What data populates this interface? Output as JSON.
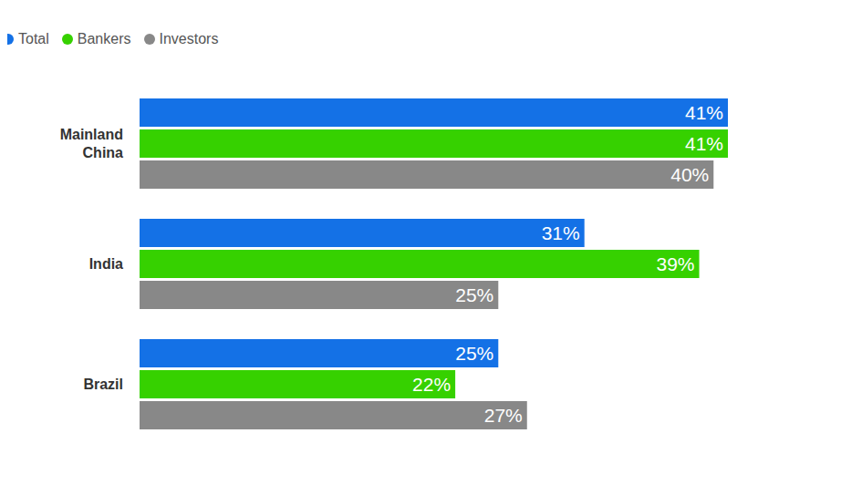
{
  "chart_data": {
    "type": "bar",
    "orientation": "horizontal",
    "categories": [
      "Mainland China",
      "India",
      "Brazil"
    ],
    "series": [
      {
        "name": "Total",
        "color": "#1471e6",
        "values": [
          41,
          31,
          25
        ],
        "value_labels": [
          "41%",
          "31%",
          "25%"
        ]
      },
      {
        "name": "Bankers",
        "color": "#36d100",
        "values": [
          41,
          39,
          22
        ],
        "value_labels": [
          "41%",
          "39%",
          "22%"
        ]
      },
      {
        "name": "Investors",
        "color": "#888888",
        "values": [
          40,
          25,
          27
        ],
        "value_labels": [
          "40%",
          "25%",
          "27%"
        ]
      }
    ],
    "data_labels": true,
    "tick_labels": false,
    "grid": false,
    "legend": "top-left"
  }
}
